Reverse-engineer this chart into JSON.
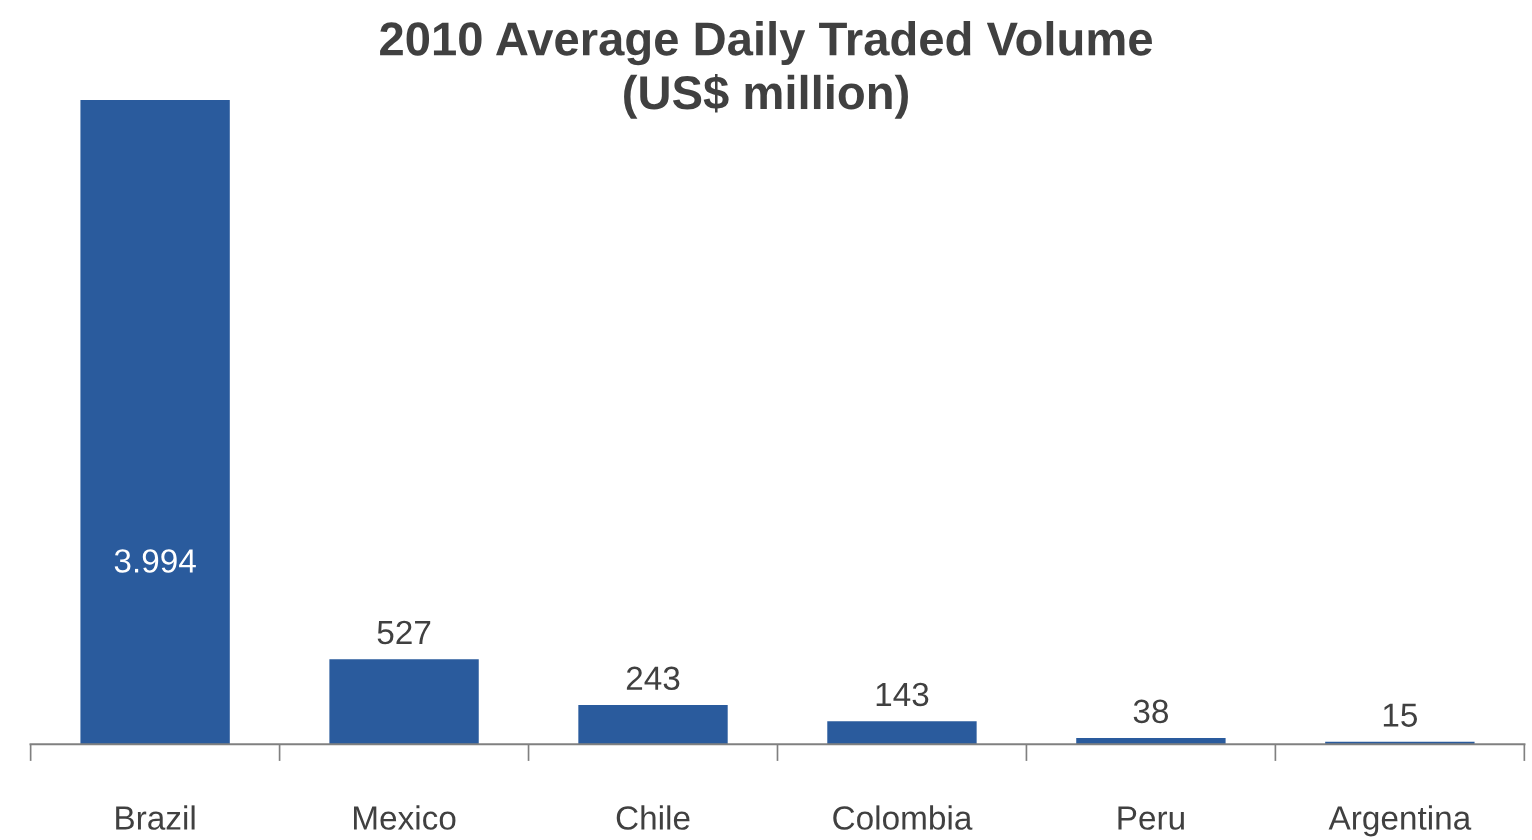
{
  "chart_data": {
    "type": "bar",
    "title": "2010 Average Daily Traded Volume\n(US$ million)",
    "categories": [
      "Brazil",
      "Mexico",
      "Chile",
      "Colombia",
      "Peru",
      "Argentina"
    ],
    "values": [
      3994,
      527,
      243,
      143,
      38,
      15
    ],
    "value_labels": [
      "3.994",
      "527",
      "243",
      "143",
      "38",
      "15"
    ],
    "color": "#2a5b9d",
    "grid": false,
    "legend": false
  }
}
